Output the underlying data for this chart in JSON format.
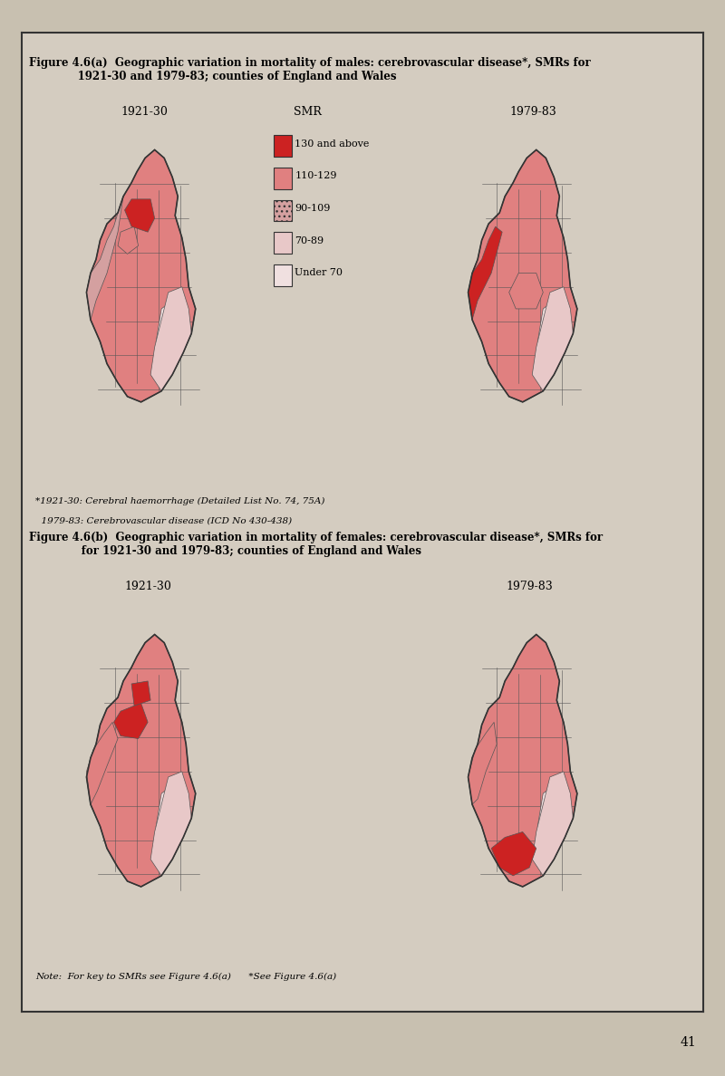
{
  "page_bg": "#c8c0b0",
  "box_bg": "#d4ccc0",
  "box_border": "#333333",
  "title_a": "Figure 4.6(a)  Geographic variation in mortality of males: cerebrovascular disease*, SMRs for\n             1921-30 and 1979-83; counties of England and Wales",
  "title_b": "Figure 4.6(b)  Geographic variation in mortality of females: cerebrovascular disease*, SMRs for\n              for 1921-30 and 1979-83; counties of England and Wales",
  "label_1921": "1921-30",
  "label_1979": "1979-83",
  "label_smr": "SMR",
  "legend_labels": [
    "130 and above",
    "110-129",
    "90-109",
    "70-89",
    "Under 70"
  ],
  "legend_colors": [
    "#cc2222",
    "#e08080",
    "#d4a0a0",
    "#e8c8c8",
    "#f0e0e0"
  ],
  "legend_hatch": [
    null,
    null,
    "....",
    null,
    null
  ],
  "footnote_a1": "*1921-30: Cerebral haemorrhage (Detailed List No. 74, 75A)",
  "footnote_a2": "  1979-83: Cerebrovascular disease (ICD No 430-438)",
  "footnote_b": "Note:  For key to SMRs see Figure 4.6(a)      *See Figure 4.6(a)",
  "page_number": "41",
  "smr_colors": {
    "130plus": "#cc2222",
    "110_129": "#e08080",
    "90_109_hatch": "#d4a0a0",
    "70_89": "#e8c8c8",
    "under70": "#f0e0e0"
  }
}
